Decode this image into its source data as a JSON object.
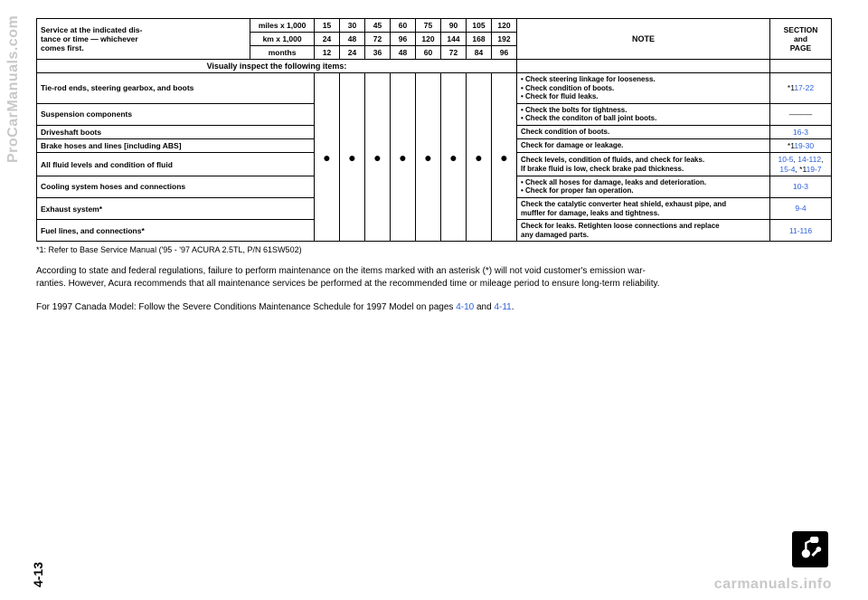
{
  "header": {
    "service_label": "Service at the indicated dis-\ntance or time — whichever\ncomes first.",
    "units": {
      "miles": "miles x 1,000",
      "km": "km x 1,000",
      "months": "months"
    },
    "cols_miles": [
      "15",
      "30",
      "45",
      "60",
      "75",
      "90",
      "105",
      "120"
    ],
    "cols_km": [
      "24",
      "48",
      "72",
      "96",
      "120",
      "144",
      "168",
      "192"
    ],
    "cols_months": [
      "12",
      "24",
      "36",
      "48",
      "60",
      "72",
      "84",
      "96"
    ],
    "note_label": "NOTE",
    "section_label": "SECTION\nand\nPAGE"
  },
  "visual_inspect": "Visually inspect the following items:",
  "rows": [
    {
      "item": "Tie-rod ends, steering gearbox, and boots",
      "note": "• Check steering linkage for looseness.\n• Check condition of boots.\n• Check for fluid leaks.",
      "page_prefix": "*1",
      "page": "17-22",
      "page_link": true
    },
    {
      "item": "Suspension components",
      "note": "• Check the bolts for tightness.\n• Check the conditon of ball joint boots.",
      "page": "———",
      "page_link": false
    },
    {
      "item": "Driveshaft boots",
      "note": "Check condition of boots.",
      "page": "16-3",
      "page_link": true
    },
    {
      "item": "Brake hoses and lines [including ABS]",
      "note": "Check for damage or leakage.",
      "page_prefix": "*1",
      "page": "19-30",
      "page_link": true
    },
    {
      "item": "All fluid levels and condition of fluid",
      "note": "Check levels, condition of fluids, and check for leaks.\nIf brake fluid is low, check brake pad thickness.",
      "page_html": "<span class='link'>10-5</span>, <span class='link'>14-112</span>,<br><span class='link'>15-4</span>, *1<span class='link'>19-7</span>"
    },
    {
      "item": "Cooling system hoses and connections",
      "note": "• Check all hoses for damage, leaks and deterioration.\n• Check for proper fan operation.",
      "page": "10-3",
      "page_link": true
    },
    {
      "item": "Exhaust system*",
      "note": "Check the catalytic converter heat shield, exhaust pipe, and\nmuffler for damage, leaks and tightness.",
      "page": "9-4",
      "page_link": true
    },
    {
      "item": "Fuel lines, and connections*",
      "note": "Check for leaks. Retighten loose connections and replace\nany damaged parts.",
      "page": "11-116",
      "page_link": true
    }
  ],
  "footnote": "*1: Refer to Base Service Manual ('95 - '97 ACURA 2.5TL, P/N 61SW502)",
  "para1": "According to state and federal regulations, failure to perform maintenance on the items marked with an asterisk (*) will not void customer's emission war-\nranties. However, Acura recommends that all maintenance services be performed at the recommended time or mileage period to ensure long-term reliability.",
  "para2_a": "For 1997 Canada Model: Follow the Severe Conditions Maintenance Schedule for 1997 Model on pages ",
  "para2_link1": "4-10",
  "para2_mid": " and ",
  "para2_link2": "4-11",
  "para2_end": ".",
  "watermark_left": "ProCarManuals.com",
  "watermark_bottom": "carmanuals.info",
  "page_number": "4-13",
  "dot": "●",
  "colors": {
    "link": "#2b5fdb",
    "watermark": "#c8c8c8",
    "text": "#000000",
    "background": "#ffffff"
  }
}
